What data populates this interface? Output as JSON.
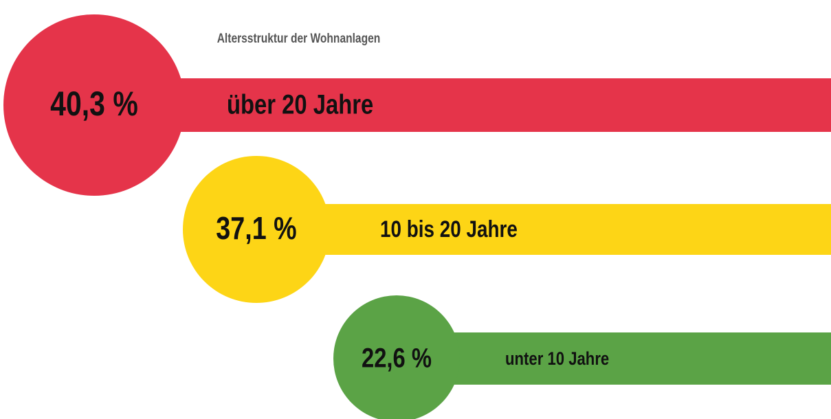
{
  "chart_data": {
    "type": "bubble-bar",
    "title": "Altersstruktur der Wohnanlagen",
    "categories": [
      "über 20 Jahre",
      "10 bis 20 Jahre",
      "unter 10 Jahre"
    ],
    "values": [
      40.3,
      37.1,
      22.6
    ],
    "value_labels": [
      "40,3 %",
      "37,1 %",
      "22,6 %"
    ],
    "colors": [
      "#e5344a",
      "#fdd516",
      "#5ba346"
    ]
  }
}
